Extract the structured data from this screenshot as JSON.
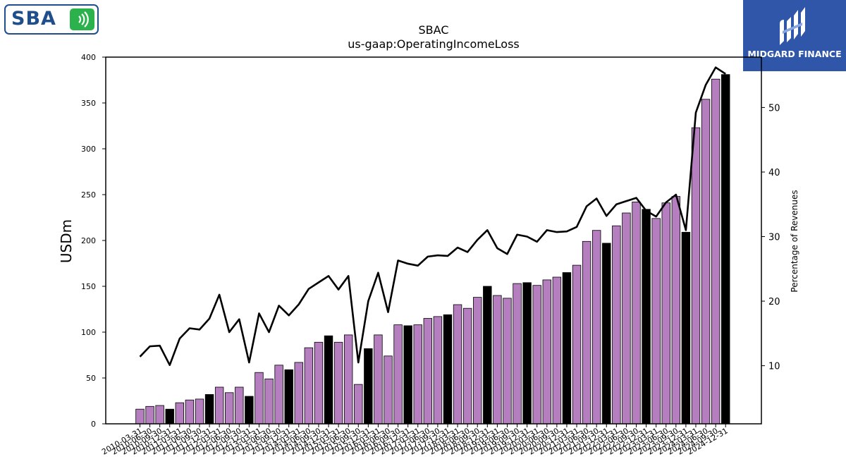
{
  "logos": {
    "left_brand": "SBA",
    "right_brand": "MIDGARD FINANCE",
    "colors": {
      "sba_blue": "#1f4e8c",
      "sba_green": "#2bb24c",
      "midgard_blue": "#2f56a8"
    }
  },
  "chart_data": {
    "type": "bar",
    "title": "SBAC",
    "subtitle": "us-gaap:OperatingIncomeLoss",
    "ylabel": "USDm",
    "y2label": "Percentage of Revenues",
    "ylim": [
      0,
      400
    ],
    "yticks": [
      0,
      50,
      100,
      150,
      200,
      250,
      300,
      350,
      400
    ],
    "y2lim": [
      1,
      57.8
    ],
    "y2ticks": [
      10,
      20,
      30,
      40,
      50
    ],
    "categories": [
      "2010-03-31",
      "2010-06-30",
      "2010-09-30",
      "2010-12-31",
      "2011-03-31",
      "2011-06-30",
      "2011-09-30",
      "2011-12-31",
      "2012-03-31",
      "2012-06-30",
      "2012-09-30",
      "2012-12-31",
      "2013-03-31",
      "2013-06-30",
      "2013-09-30",
      "2013-12-31",
      "2014-03-31",
      "2014-06-30",
      "2014-09-30",
      "2014-12-31",
      "2015-03-31",
      "2015-06-30",
      "2015-09-30",
      "2015-12-31",
      "2016-03-31",
      "2016-06-30",
      "2016-09-30",
      "2016-12-31",
      "2017-03-31",
      "2017-06-30",
      "2017-09-30",
      "2017-12-31",
      "2018-03-31",
      "2018-06-30",
      "2018-09-30",
      "2018-12-31",
      "2019-03-31",
      "2019-06-30",
      "2019-09-30",
      "2019-12-31",
      "2020-03-31",
      "2020-06-30",
      "2020-09-30",
      "2020-12-31",
      "2021-03-31",
      "2021-06-30",
      "2021-09-30",
      "2021-12-31",
      "2022-03-31",
      "2022-06-30",
      "2022-09-30",
      "2022-12-31",
      "2023-03-31",
      "2023-06-30",
      "2023-09-30",
      "2023-12-31",
      "2024-03-31",
      "2024-06-30",
      "2024-09-30",
      "2024-12-31"
    ],
    "series": [
      {
        "type": "bar",
        "axis": "left",
        "values": [
          16,
          19,
          20,
          16,
          23,
          26,
          27,
          32,
          40,
          34,
          40,
          30,
          56,
          49,
          64,
          59,
          67,
          83,
          89,
          96,
          89,
          97,
          43,
          82,
          97,
          74,
          108,
          107,
          108,
          115,
          117,
          119,
          130,
          126,
          138,
          150,
          140,
          137,
          153,
          154,
          151,
          157,
          160,
          165,
          173,
          199,
          211,
          197,
          216,
          230,
          242,
          234,
          224,
          241,
          248,
          209,
          323,
          354,
          376,
          381
        ],
        "bar_kinds": [
          "q",
          "q",
          "q",
          "a",
          "q",
          "q",
          "q",
          "a",
          "q",
          "q",
          "q",
          "a",
          "q",
          "q",
          "q",
          "a",
          "q",
          "q",
          "q",
          "a",
          "q",
          "q",
          "q",
          "a",
          "q",
          "q",
          "q",
          "a",
          "q",
          "q",
          "q",
          "a",
          "q",
          "q",
          "q",
          "a",
          "q",
          "q",
          "q",
          "a",
          "q",
          "q",
          "q",
          "a",
          "q",
          "q",
          "q",
          "a",
          "q",
          "q",
          "q",
          "a",
          "q",
          "q",
          "q",
          "a",
          "q",
          "q",
          "q",
          "a"
        ]
      },
      {
        "type": "line",
        "axis": "right",
        "values": [
          11.4,
          13,
          13.1,
          10.1,
          14.2,
          15.8,
          15.6,
          17.3,
          21,
          15.2,
          17.2,
          10.5,
          18.1,
          15.2,
          19.3,
          17.8,
          19.5,
          21.9,
          22.9,
          23.9,
          21.8,
          23.9,
          10.5,
          20,
          24.4,
          18.3,
          26.3,
          25.8,
          25.5,
          26.9,
          27.1,
          27,
          28.3,
          27.6,
          29.5,
          31,
          28.2,
          27.3,
          30.3,
          30,
          29.2,
          31,
          30.7,
          30.8,
          31.5,
          34.7,
          35.9,
          33.2,
          35,
          35.5,
          36,
          34,
          33.1,
          35.3,
          36.5,
          31,
          49.2,
          53.5,
          56.2,
          55.2
        ]
      }
    ],
    "colors": {
      "quarter_bar": "#b57fbf",
      "annual_bar": "#000000",
      "line": "#000000"
    },
    "legend": "none",
    "grid": false
  }
}
